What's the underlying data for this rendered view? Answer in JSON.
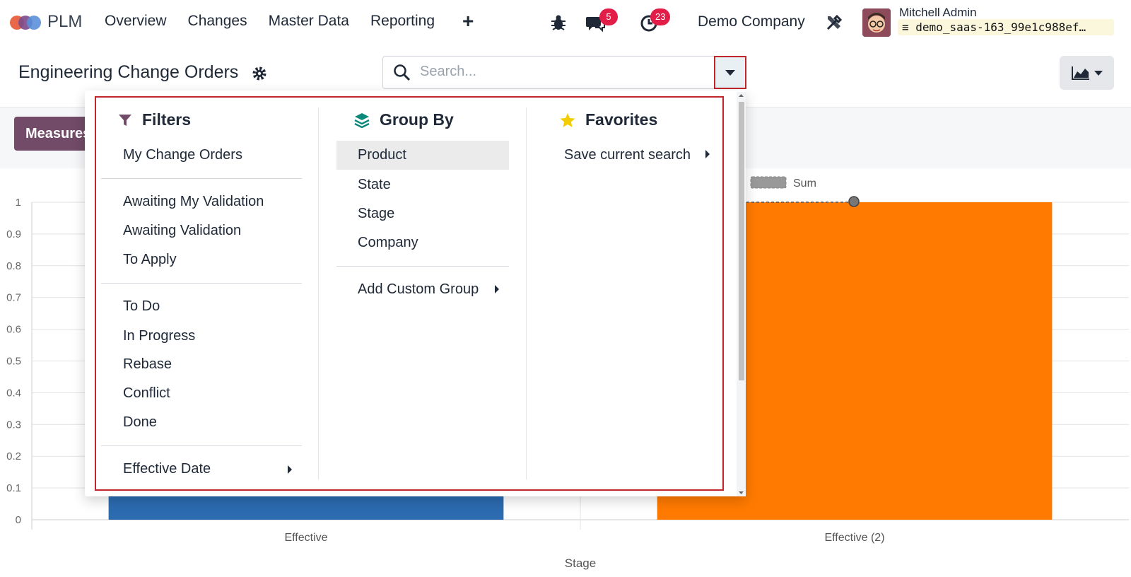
{
  "app": {
    "name": "PLM",
    "menu": [
      "Overview",
      "Changes",
      "Master Data",
      "Reporting"
    ],
    "new_label": "+",
    "messages_count": "5",
    "activities_count": "23",
    "company": "Demo Company",
    "user_name": "Mitchell Admin",
    "database": "demo_saas-163_99e1c988ef…"
  },
  "page": {
    "title": "Engineering Change Orders",
    "measures_label": "Measures"
  },
  "search": {
    "placeholder": "Search..."
  },
  "filters": {
    "title": "Filters",
    "groups": [
      [
        "My Change Orders"
      ],
      [
        "Awaiting My Validation",
        "Awaiting Validation",
        "To Apply"
      ],
      [
        "To Do",
        "In Progress",
        "Rebase",
        "Conflict",
        "Done"
      ],
      [
        "Effective Date"
      ]
    ]
  },
  "group_by": {
    "title": "Group By",
    "options": [
      "Product",
      "State",
      "Stage",
      "Company"
    ],
    "custom": "Add Custom Group"
  },
  "favorites": {
    "title": "Favorites",
    "save": "Save current search"
  },
  "chart_data": {
    "type": "bar",
    "categories": [
      "Effective",
      "Effective (2)"
    ],
    "series": [
      {
        "values": [
          1,
          1
        ],
        "colors": [
          "#2c6bb0",
          "#ff7a00"
        ]
      }
    ],
    "legend": [
      "Sum"
    ],
    "xlabel": "Stage",
    "ylabel": "",
    "ylim": [
      0,
      1
    ],
    "yticks": [
      "0",
      "0.1",
      "0.2",
      "0.3",
      "0.4",
      "0.5",
      "0.6",
      "0.7",
      "0.8",
      "0.9",
      "1"
    ]
  },
  "colors": {
    "brand": "#714b67",
    "badge": "#e11d48",
    "highlight": "#c0262b"
  }
}
